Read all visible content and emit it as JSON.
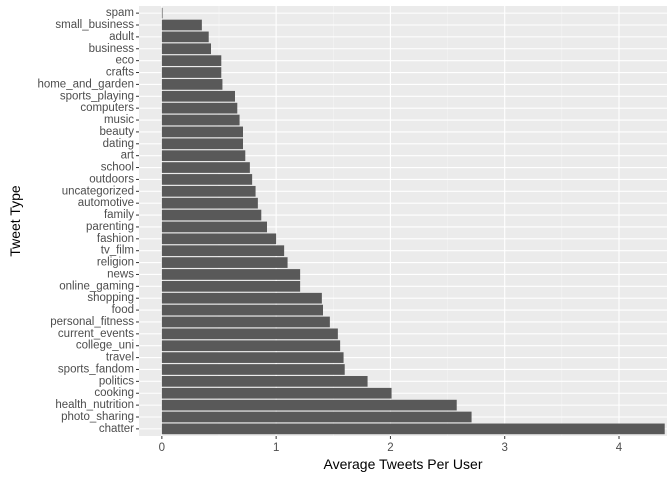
{
  "chart_data": {
    "type": "bar",
    "orientation": "horizontal",
    "title": "",
    "xlabel": "Average Tweets Per User",
    "ylabel": "Tweet Type",
    "xlim": [
      -0.2,
      4.42
    ],
    "x_ticks": [
      0,
      1,
      2,
      3,
      4
    ],
    "grid": true,
    "legend": "none",
    "categories": [
      "spam",
      "small_business",
      "adult",
      "business",
      "eco",
      "crafts",
      "home_and_garden",
      "sports_playing",
      "computers",
      "music",
      "beauty",
      "dating",
      "art",
      "school",
      "outdoors",
      "uncategorized",
      "automotive",
      "family",
      "parenting",
      "fashion",
      "tv_film",
      "religion",
      "news",
      "online_gaming",
      "shopping",
      "food",
      "personal_fitness",
      "current_events",
      "college_uni",
      "travel",
      "sports_fandom",
      "politics",
      "cooking",
      "health_nutrition",
      "photo_sharing",
      "chatter"
    ],
    "values": [
      0.006,
      0.35,
      0.41,
      0.43,
      0.52,
      0.52,
      0.53,
      0.64,
      0.66,
      0.68,
      0.71,
      0.71,
      0.73,
      0.77,
      0.79,
      0.82,
      0.84,
      0.87,
      0.92,
      1.0,
      1.07,
      1.1,
      1.21,
      1.21,
      1.4,
      1.41,
      1.47,
      1.54,
      1.56,
      1.59,
      1.6,
      1.8,
      2.01,
      2.58,
      2.71,
      4.4
    ],
    "colors": {
      "panel_background": "#EBEBEB",
      "grid_major": "#FFFFFF",
      "grid_minor": "#F5F5F5",
      "bar": "#595959",
      "tick_label": "#4D4D4D",
      "axis_title": "#000000",
      "tick_mark": "#333333"
    }
  }
}
